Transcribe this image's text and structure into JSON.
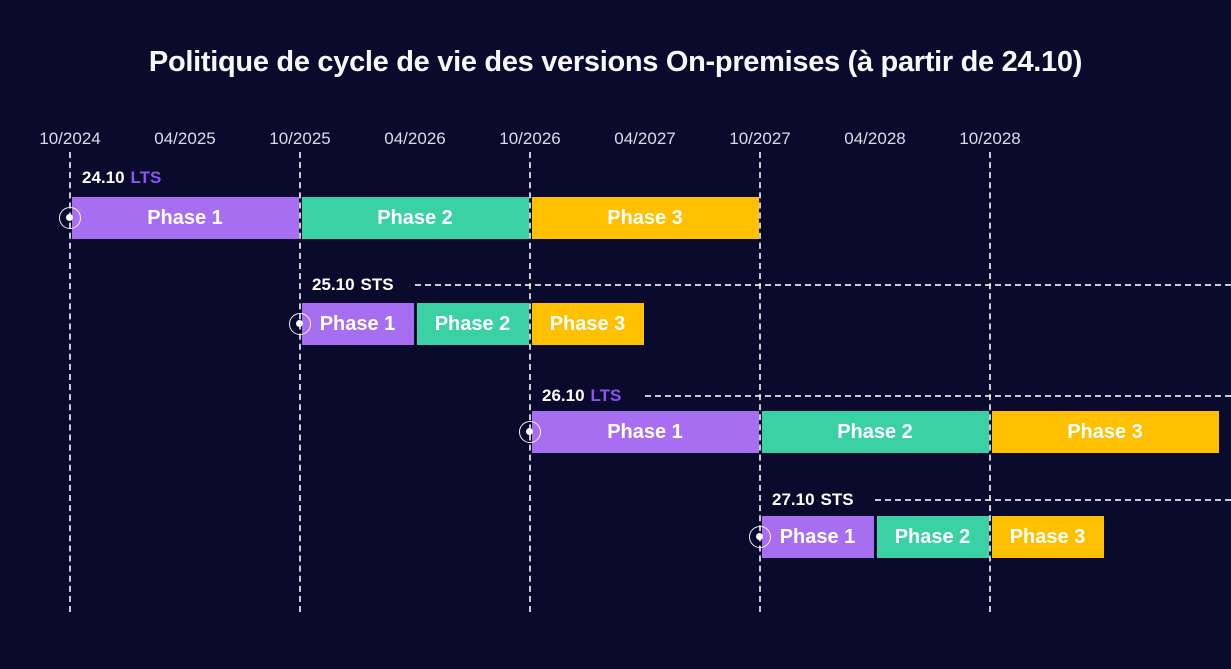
{
  "colors": {
    "background": "#0a0a2d",
    "phase1": "#a86ef2",
    "phase2": "#3ad1a4",
    "phase3": "#ffc000",
    "lts_text": "#8a55f0",
    "sts_text": "#ffffff",
    "axis_text": "#dddcec",
    "guide_line": "#ffffff",
    "bar_text": "#ffffff",
    "title_text": "#f8f8fc"
  },
  "chart_data": {
    "type": "gantt",
    "title": "Politique de cycle de vie des versions On-premises (à partir de 24.10)",
    "axis": {
      "tick_labels": [
        "10/2024",
        "04/2025",
        "10/2025",
        "04/2026",
        "10/2026",
        "04/2027",
        "10/2027",
        "04/2028",
        "10/2028"
      ],
      "tick_interval_months": 6,
      "gridlines_at": [
        "10/2024",
        "10/2025",
        "10/2026",
        "10/2027",
        "10/2028"
      ],
      "grid": "vertical-dashed-lines-at-october-ticks"
    },
    "legend_note": "phases colored: Phase 1 purple, Phase 2 teal, Phase 3 amber",
    "rows": [
      {
        "version": "24.10",
        "release_type": "LTS",
        "dash_line_from": null,
        "phases": [
          {
            "label": "Phase 1",
            "start": "10/2024",
            "end": "10/2025",
            "color_key": "phase1"
          },
          {
            "label": "Phase 2",
            "start": "10/2025",
            "end": "10/2026",
            "color_key": "phase2"
          },
          {
            "label": "Phase 3",
            "start": "10/2026",
            "end": "10/2027",
            "color_key": "phase3"
          }
        ]
      },
      {
        "version": "25.10",
        "release_type": "STS",
        "dash_line_from": "04/2026",
        "phases": [
          {
            "label": "Phase 1",
            "start": "10/2025",
            "end": "04/2026",
            "color_key": "phase1"
          },
          {
            "label": "Phase 2",
            "start": "04/2026",
            "end": "10/2026",
            "color_key": "phase2"
          },
          {
            "label": "Phase 3",
            "start": "10/2026",
            "end": "04/2027",
            "color_key": "phase3"
          }
        ]
      },
      {
        "version": "26.10",
        "release_type": "LTS",
        "dash_line_from": "04/2027",
        "phases": [
          {
            "label": "Phase 1",
            "start": "10/2026",
            "end": "10/2027",
            "color_key": "phase1"
          },
          {
            "label": "Phase 2",
            "start": "10/2027",
            "end": "10/2028",
            "color_key": "phase2"
          },
          {
            "label": "Phase 3",
            "start": "10/2028",
            "end": "10/2029",
            "color_key": "phase3"
          }
        ]
      },
      {
        "version": "27.10",
        "release_type": "STS",
        "dash_line_from": "04/2028",
        "phases": [
          {
            "label": "Phase 1",
            "start": "10/2027",
            "end": "04/2028",
            "color_key": "phase1"
          },
          {
            "label": "Phase 2",
            "start": "04/2028",
            "end": "10/2028",
            "color_key": "phase2"
          },
          {
            "label": "Phase 3",
            "start": "10/2028",
            "end": "04/2029",
            "color_key": "phase3"
          }
        ]
      }
    ]
  }
}
